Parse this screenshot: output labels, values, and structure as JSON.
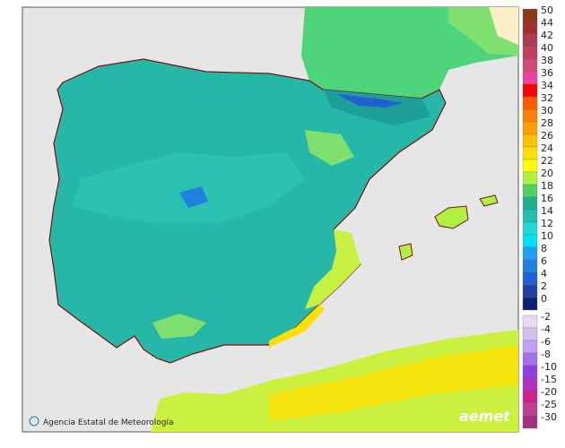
{
  "attribution": "Agencia Estatal de Meteorología",
  "logo": "aemet",
  "legend": {
    "upper": [
      {
        "label": 50,
        "color": "#8b3a1a"
      },
      {
        "label": 44,
        "color": "#a0302e"
      },
      {
        "label": 42,
        "color": "#b03a4e"
      },
      {
        "label": 40,
        "color": "#c0405e"
      },
      {
        "label": 38,
        "color": "#d04a7a"
      },
      {
        "label": 36,
        "color": "#f040a0"
      },
      {
        "label": 34,
        "color": "#ff0000"
      },
      {
        "label": 32,
        "color": "#ff5a00"
      },
      {
        "label": 30,
        "color": "#ff7f00"
      },
      {
        "label": 28,
        "color": "#ffa000"
      },
      {
        "label": 26,
        "color": "#ffc000"
      },
      {
        "label": 24,
        "color": "#ffe000"
      },
      {
        "label": 22,
        "color": "#ffff00"
      },
      {
        "label": 20,
        "color": "#b0f040"
      },
      {
        "label": 18,
        "color": "#50d060"
      },
      {
        "label": 16,
        "color": "#20b090"
      },
      {
        "label": 14,
        "color": "#20c0b0"
      },
      {
        "label": 12,
        "color": "#20d8d8"
      },
      {
        "label": 10,
        "color": "#00e0f0"
      },
      {
        "label": 8,
        "color": "#20a0f0"
      },
      {
        "label": 6,
        "color": "#2080e0"
      },
      {
        "label": 4,
        "color": "#2060d0"
      },
      {
        "label": 2,
        "color": "#2040a0"
      },
      {
        "label": 0,
        "color": "#102070"
      }
    ],
    "lower": [
      {
        "label": -2,
        "color": "#e8d8f0"
      },
      {
        "label": -4,
        "color": "#d0c0f0"
      },
      {
        "label": -6,
        "color": "#c0a0f0"
      },
      {
        "label": -8,
        "color": "#a070f0"
      },
      {
        "label": -10,
        "color": "#9040e0"
      },
      {
        "label": -15,
        "color": "#b030c0"
      },
      {
        "label": -20,
        "color": "#d02090"
      },
      {
        "label": -25,
        "color": "#c04090"
      },
      {
        "label": -30,
        "color": "#a03080"
      }
    ]
  }
}
